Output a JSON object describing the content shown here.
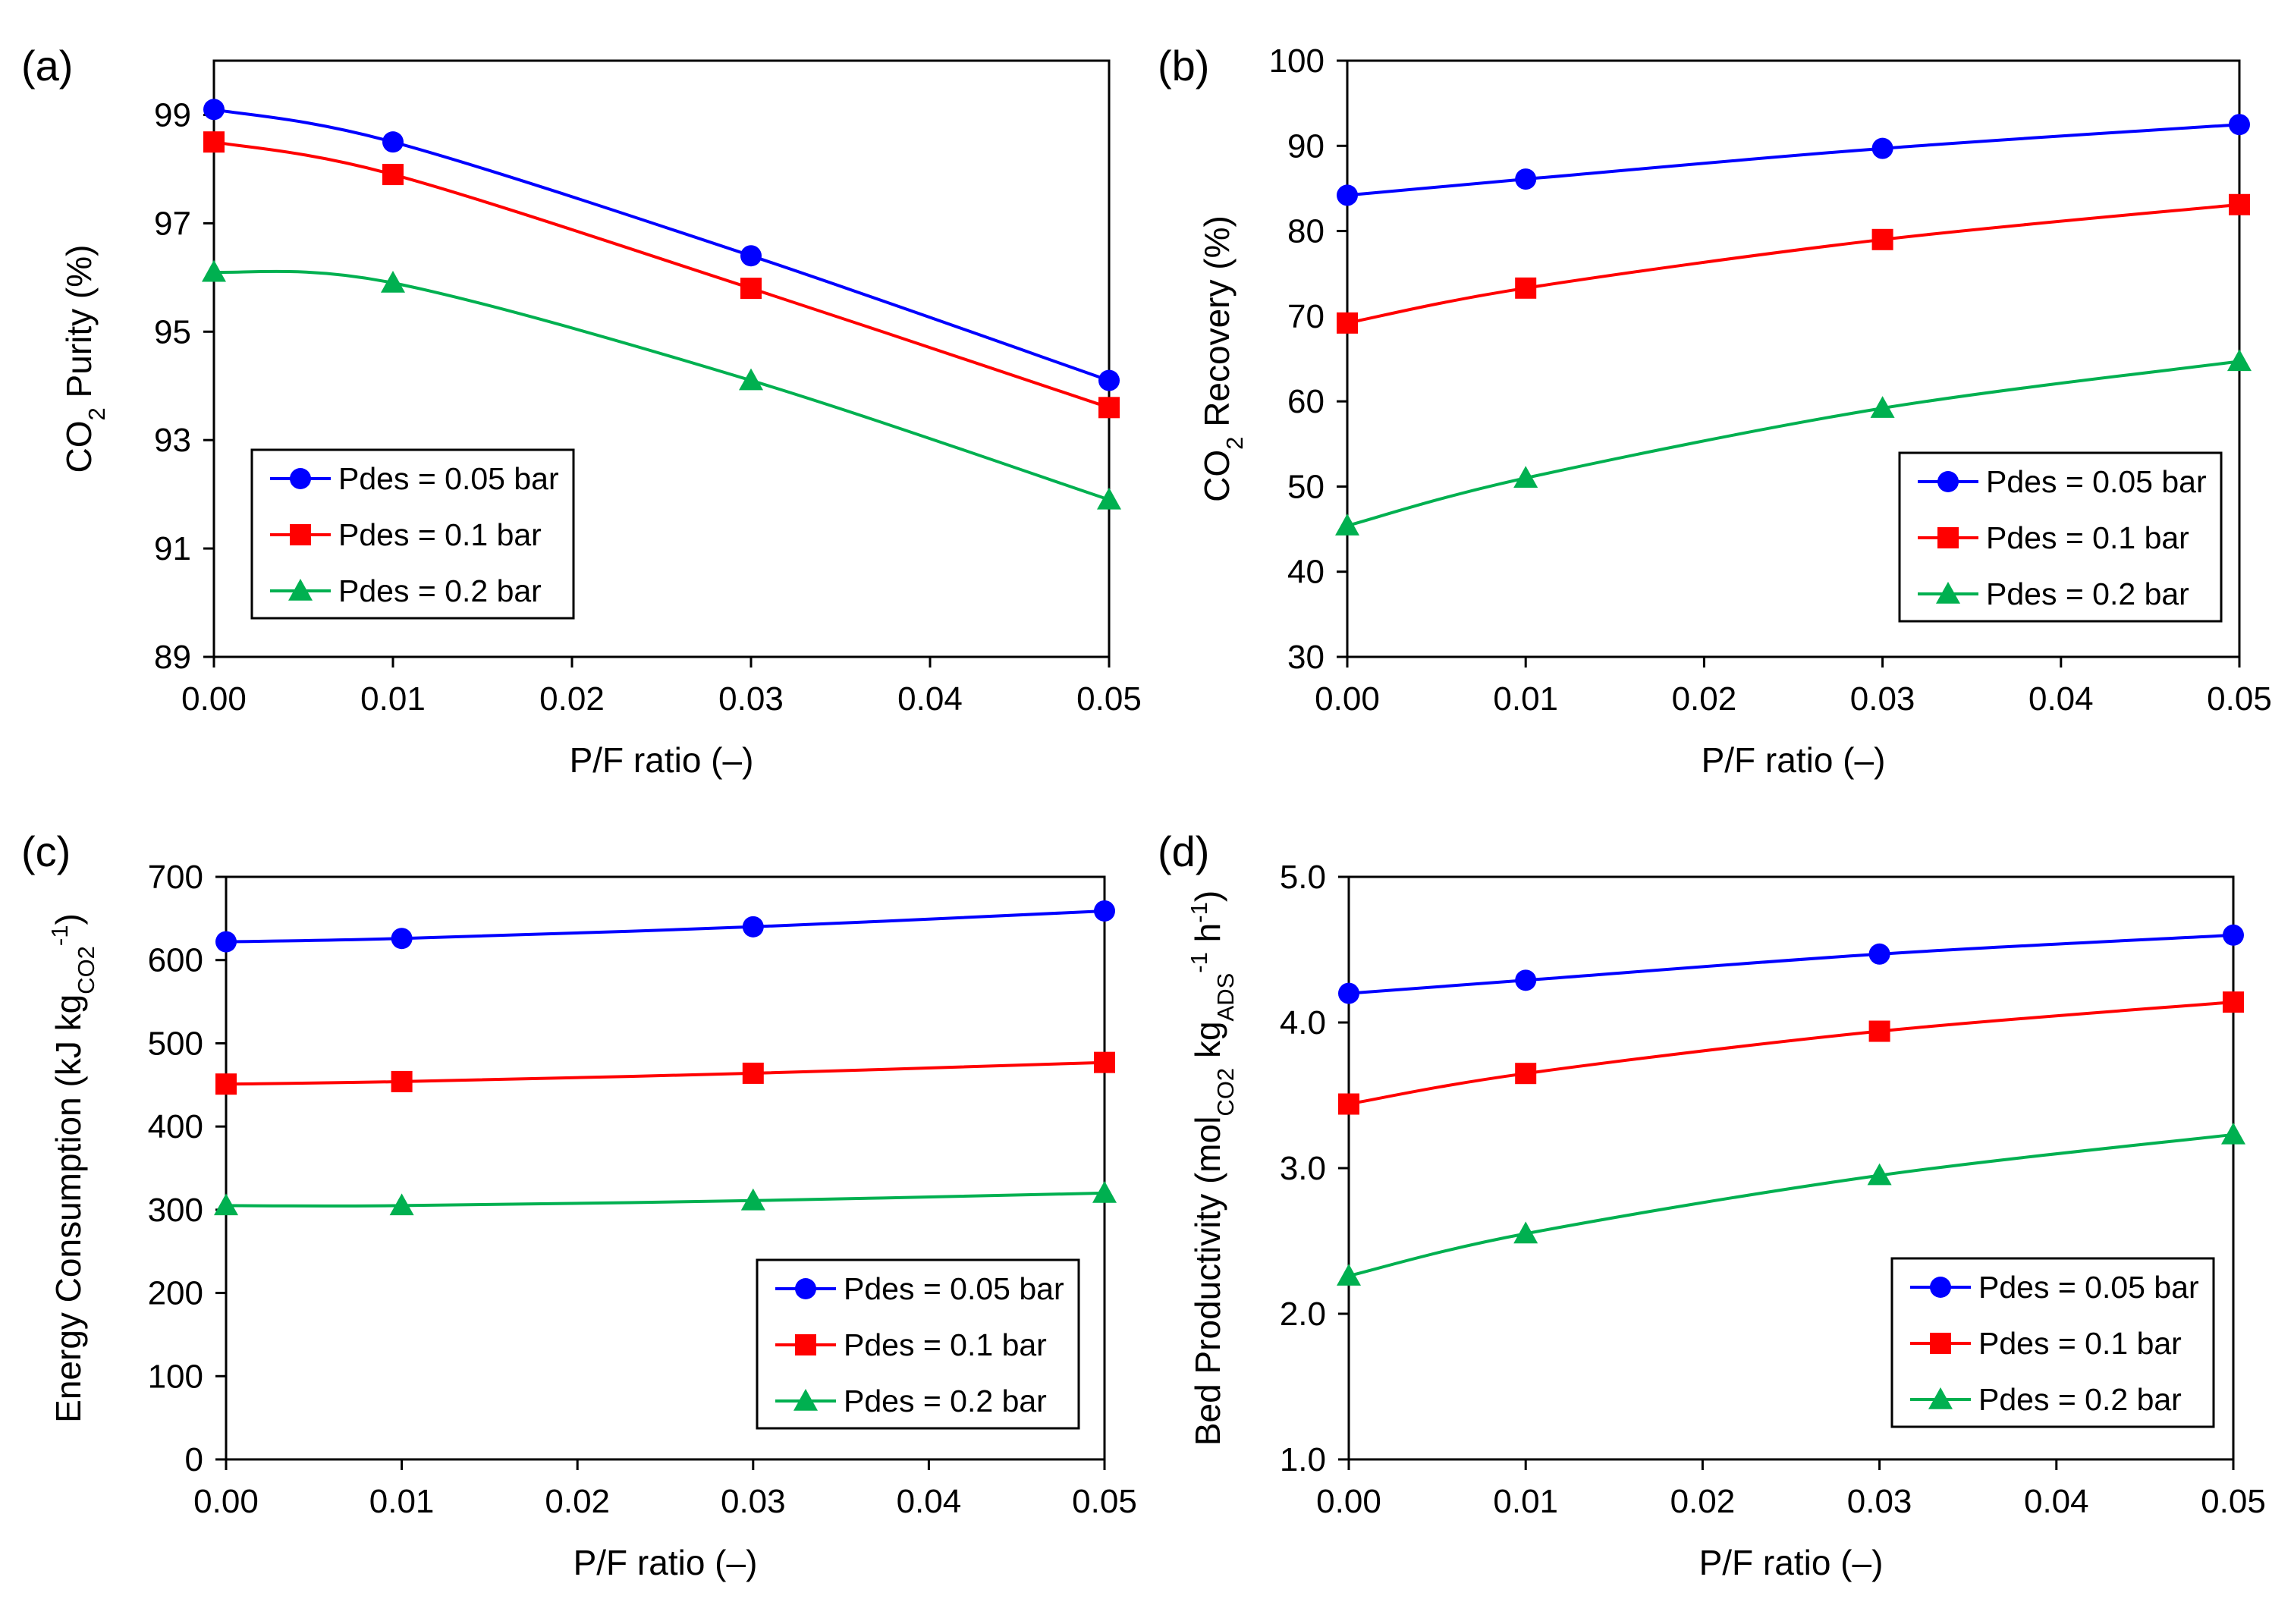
{
  "figure": {
    "panels": [
      "(a)",
      "(b)",
      "(c)",
      "(d)"
    ]
  },
  "colors": {
    "series": [
      "#0000ff",
      "#ff0000",
      "#00b050"
    ],
    "axes": "#000000"
  },
  "chart_data": [
    {
      "type": "line",
      "panel": "(a)",
      "xlabel": "P/F ratio (–)",
      "ylabel_parts": [
        {
          "text": "CO"
        },
        {
          "text": "2",
          "sub": true
        },
        {
          "text": " Purity (%)"
        }
      ],
      "xlim": [
        0,
        0.05
      ],
      "ylim": [
        89,
        100
      ],
      "xticks": [
        "0.00",
        "0.01",
        "0.02",
        "0.03",
        "0.04",
        "0.05"
      ],
      "yticks": [
        "89",
        "91",
        "93",
        "95",
        "97",
        "99"
      ],
      "ytick_values": [
        89,
        91,
        93,
        95,
        97,
        99
      ],
      "grid": false,
      "legend_position": "bottom-left",
      "x": [
        0,
        0.01,
        0.03,
        0.05
      ],
      "series": [
        {
          "name": "Pdes = 0.05 bar",
          "marker": "circle",
          "values": [
            99.1,
            98.5,
            96.4,
            94.1
          ]
        },
        {
          "name": "Pdes = 0.1 bar",
          "marker": "square",
          "values": [
            98.5,
            97.9,
            95.8,
            93.6
          ]
        },
        {
          "name": "Pdes = 0.2 bar",
          "marker": "triangle",
          "values": [
            96.1,
            95.9,
            94.1,
            91.9
          ]
        }
      ]
    },
    {
      "type": "line",
      "panel": "(b)",
      "xlabel": "P/F ratio (–)",
      "ylabel_parts": [
        {
          "text": "CO"
        },
        {
          "text": "2",
          "sub": true
        },
        {
          "text": " Recovery (%)"
        }
      ],
      "xlim": [
        0,
        0.05
      ],
      "ylim": [
        30,
        100
      ],
      "xticks": [
        "0.00",
        "0.01",
        "0.02",
        "0.03",
        "0.04",
        "0.05"
      ],
      "yticks": [
        "30",
        "40",
        "50",
        "60",
        "70",
        "80",
        "90",
        "100"
      ],
      "ytick_values": [
        30,
        40,
        50,
        60,
        70,
        80,
        90,
        100
      ],
      "grid": false,
      "legend_position": "bottom-right",
      "x": [
        0,
        0.01,
        0.03,
        0.05
      ],
      "series": [
        {
          "name": "Pdes = 0.05 bar",
          "marker": "circle",
          "values": [
            84.2,
            86.1,
            89.7,
            92.5
          ]
        },
        {
          "name": "Pdes = 0.1 bar",
          "marker": "square",
          "values": [
            69.2,
            73.3,
            79.0,
            83.1
          ]
        },
        {
          "name": "Pdes = 0.2 bar",
          "marker": "triangle",
          "values": [
            45.4,
            51.0,
            59.2,
            64.7
          ]
        }
      ]
    },
    {
      "type": "line",
      "panel": "(c)",
      "xlabel": "P/F ratio (–)",
      "ylabel_parts": [
        {
          "text": "Energy Consumption (kJ kg"
        },
        {
          "text": "CO2",
          "sub": true
        },
        {
          "text": "-1",
          "sup": true
        },
        {
          "text": ")"
        }
      ],
      "xlim": [
        0,
        0.05
      ],
      "ylim": [
        0,
        700
      ],
      "xticks": [
        "0.00",
        "0.01",
        "0.02",
        "0.03",
        "0.04",
        "0.05"
      ],
      "yticks": [
        "0",
        "100",
        "200",
        "300",
        "400",
        "500",
        "600",
        "700"
      ],
      "ytick_values": [
        0,
        100,
        200,
        300,
        400,
        500,
        600,
        700
      ],
      "grid": false,
      "legend_position": "bottom-right",
      "x": [
        0,
        0.01,
        0.03,
        0.05
      ],
      "series": [
        {
          "name": "Pdes = 0.05 bar",
          "marker": "circle",
          "values": [
            622,
            626,
            640,
            659
          ]
        },
        {
          "name": "Pdes = 0.1 bar",
          "marker": "square",
          "values": [
            451,
            454,
            464,
            477
          ]
        },
        {
          "name": "Pdes = 0.2 bar",
          "marker": "triangle",
          "values": [
            305,
            305,
            311,
            320
          ]
        }
      ]
    },
    {
      "type": "line",
      "panel": "(d)",
      "xlabel": "P/F ratio (–)",
      "ylabel_parts": [
        {
          "text": "Bed Productivity (mol"
        },
        {
          "text": "CO2",
          "sub": true
        },
        {
          "text": " kg"
        },
        {
          "text": "ADS",
          "sub": true
        },
        {
          "text": "-1",
          "sup": true
        },
        {
          "text": " h"
        },
        {
          "text": "-1",
          "sup": true
        },
        {
          "text": ")"
        }
      ],
      "xlim": [
        0,
        0.05
      ],
      "ylim": [
        1,
        5
      ],
      "xticks": [
        "0.00",
        "0.01",
        "0.02",
        "0.03",
        "0.04",
        "0.05"
      ],
      "yticks": [
        "1.0",
        "2.0",
        "3.0",
        "4.0",
        "5.0"
      ],
      "ytick_values": [
        1,
        2,
        3,
        4,
        5
      ],
      "grid": false,
      "legend_position": "bottom-right",
      "x": [
        0,
        0.01,
        0.03,
        0.05
      ],
      "series": [
        {
          "name": "Pdes = 0.05 bar",
          "marker": "circle",
          "values": [
            4.2,
            4.29,
            4.47,
            4.6
          ]
        },
        {
          "name": "Pdes = 0.1 bar",
          "marker": "square",
          "values": [
            3.44,
            3.65,
            3.94,
            4.14
          ]
        },
        {
          "name": "Pdes = 0.2 bar",
          "marker": "triangle",
          "values": [
            2.26,
            2.55,
            2.95,
            3.23
          ]
        }
      ]
    }
  ]
}
